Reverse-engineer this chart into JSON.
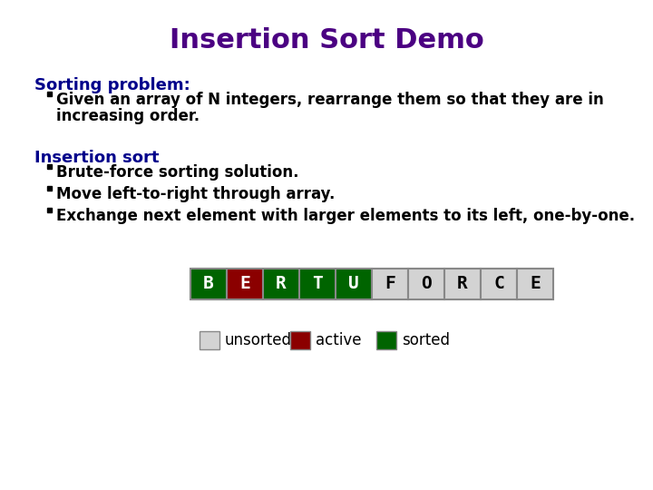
{
  "title": "Insertion Sort Demo",
  "title_color": "#4B0082",
  "title_fontsize": 22,
  "bg_color": "#ffffff",
  "section1_label": "Sorting problem:",
  "section1_color": "#00008B",
  "section1_fontsize": 13,
  "bullet1_line1": "Given an array of N integers, rearrange them so that they are in",
  "bullet1_line2": "increasing order.",
  "bullet_fontsize": 12,
  "section2_label": "Insertion sort",
  "section2_color": "#00008B",
  "section2_fontsize": 13,
  "section2_bullets": [
    "Brute-force sorting solution.",
    "Move left-to-right through array.",
    "Exchange next element with larger elements to its left, one-by-one."
  ],
  "array_letters": [
    "B",
    "E",
    "R",
    "T",
    "U",
    "F",
    "O",
    "R",
    "C",
    "E"
  ],
  "array_colors": [
    "#006400",
    "#8B0000",
    "#006400",
    "#006400",
    "#006400",
    "#d3d3d3",
    "#d3d3d3",
    "#d3d3d3",
    "#d3d3d3",
    "#d3d3d3"
  ],
  "array_text_colors": [
    "#ffffff",
    "#ffffff",
    "#ffffff",
    "#ffffff",
    "#ffffff",
    "#000000",
    "#000000",
    "#000000",
    "#000000",
    "#000000"
  ],
  "array_fontsize": 14,
  "legend_items": [
    {
      "label": "unsorted",
      "color": "#d3d3d3"
    },
    {
      "label": "active",
      "color": "#8B0000"
    },
    {
      "label": "sorted",
      "color": "#006400"
    }
  ],
  "legend_fontsize": 12,
  "bullet_marker_color": "#000000"
}
